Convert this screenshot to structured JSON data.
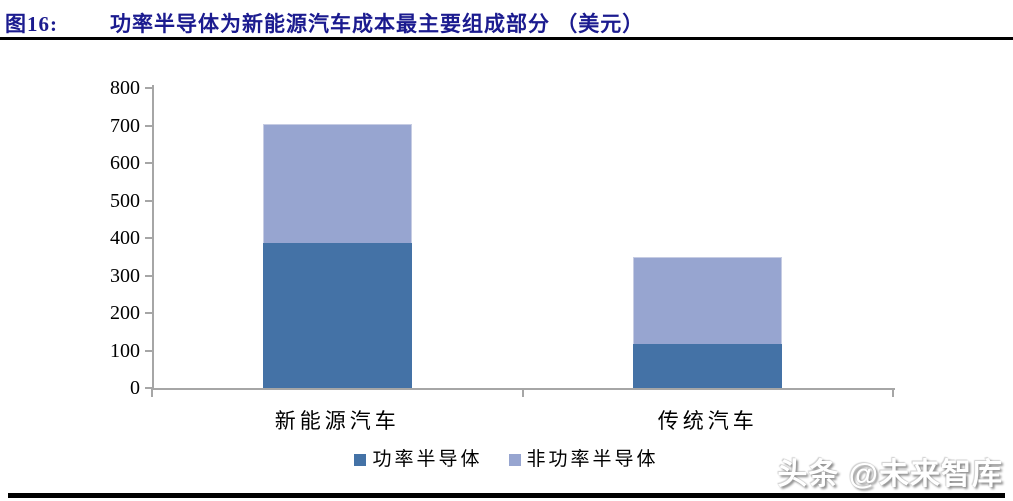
{
  "header": {
    "figure_label": "图16:",
    "title": "功率半导体为新能源汽车成本最主要组成部分 （美元）"
  },
  "watermark": "头条 @未来智库",
  "colors": {
    "title_text": "#1b1b8f",
    "axis": "#a6a6a6",
    "separator": "#000000",
    "power_semiconductor": "#4472a6",
    "non_power_semiconductor": "#97a5d0"
  },
  "chart_data": {
    "type": "bar",
    "stacked": true,
    "title": "功率半导体为新能源汽车成本最主要组成部分（美元）",
    "categories": [
      "新能源汽车",
      "传统汽车"
    ],
    "series": [
      {
        "name": "功率半导体",
        "values": [
          387,
          117
        ],
        "color": "#4472a6"
      },
      {
        "name": "非功率半导体",
        "values": [
          317,
          233
        ],
        "color": "#97a5d0"
      }
    ],
    "totals": [
      704,
      350
    ],
    "xlabel": "",
    "ylabel": "",
    "ylim": [
      0,
      800
    ],
    "yticks": [
      0,
      100,
      200,
      300,
      400,
      500,
      600,
      700,
      800
    ],
    "grid": false,
    "legend_position": "bottom"
  }
}
